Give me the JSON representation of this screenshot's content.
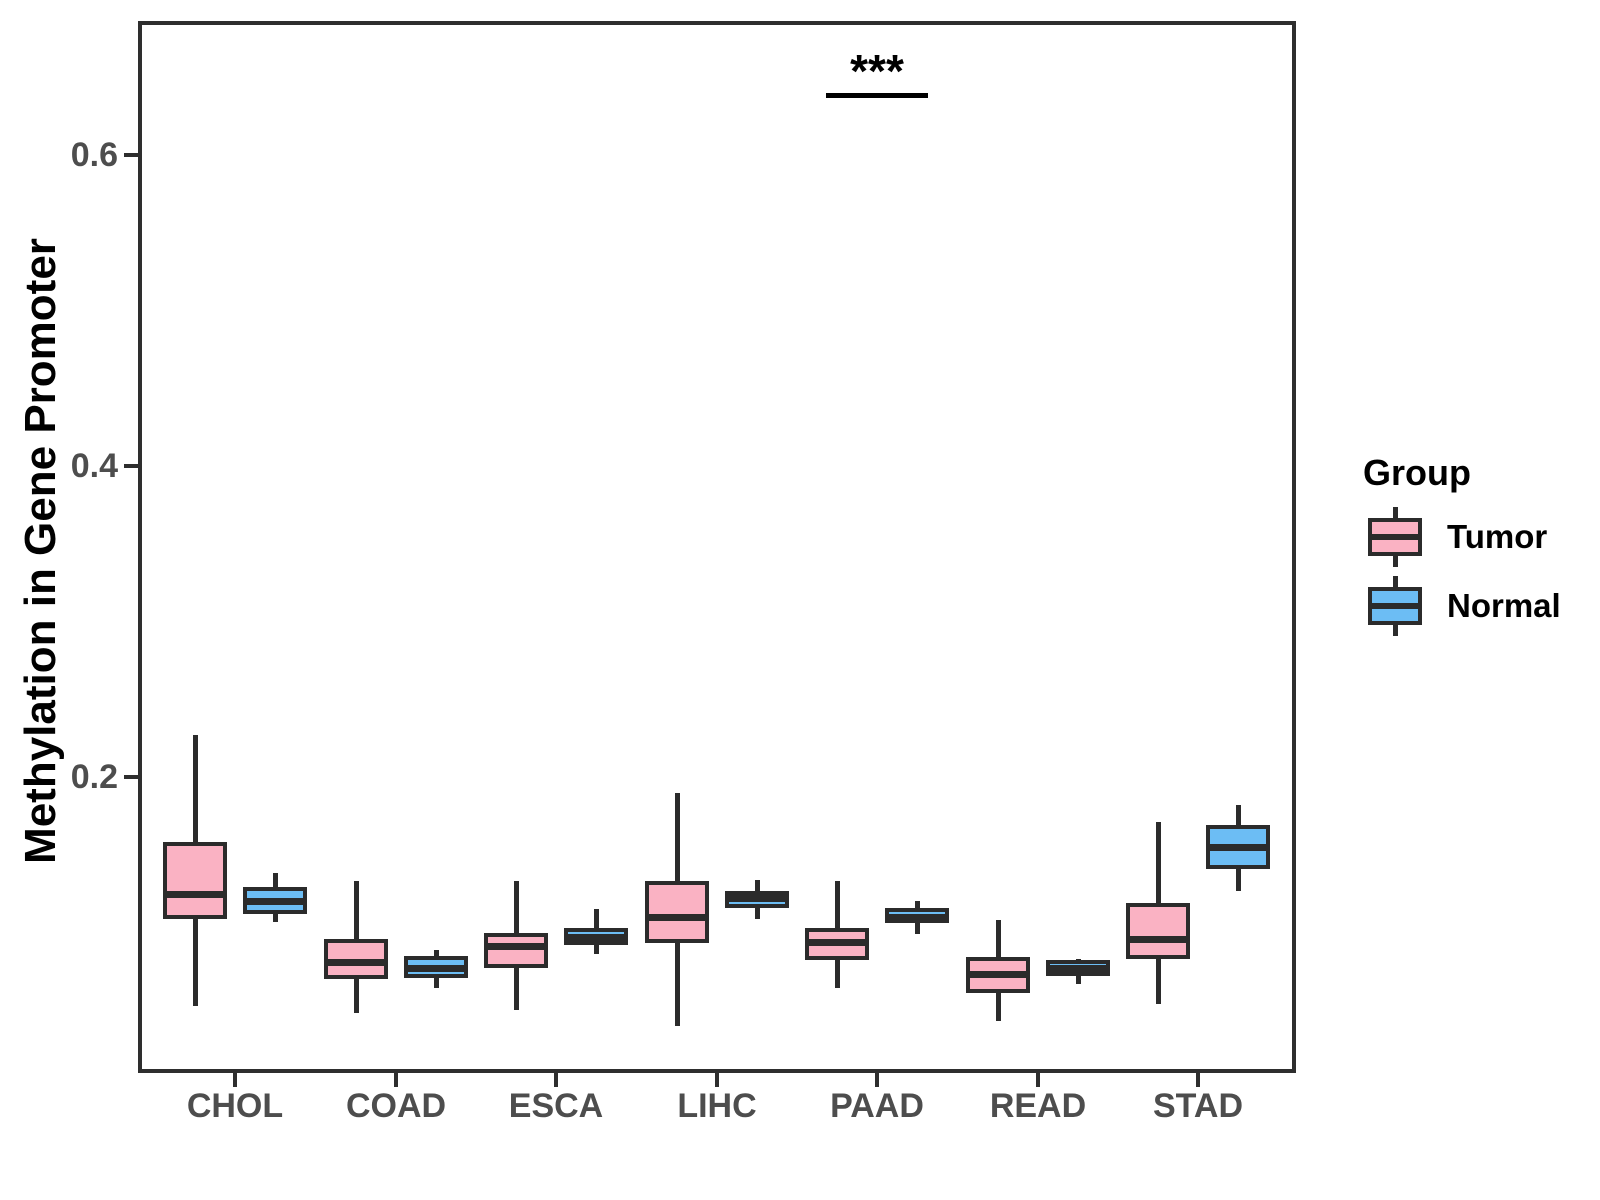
{
  "chart_data": {
    "type": "boxplot",
    "title": "",
    "xlabel": "",
    "ylabel": "Methylation in Gene Promoter",
    "categories": [
      "CHOL",
      "COAD",
      "ESCA",
      "LIHC",
      "PAAD",
      "READ",
      "STAD"
    ],
    "y_ticks": [
      "0.2",
      "0.4",
      "0.6"
    ],
    "y_tick_values": [
      0.2,
      0.4,
      0.6
    ],
    "ylim": [
      0.01,
      0.69
    ],
    "grid": "off",
    "legend_position": "right",
    "legend": {
      "title": "Group",
      "entries": [
        {
          "label": "Tumor",
          "color": "#FAB2C3"
        },
        {
          "label": "Normal",
          "color": "#6CBDF4"
        }
      ]
    },
    "series": [
      {
        "name": "Tumor",
        "color": "#FAB2C3",
        "boxes": [
          {
            "category": "CHOL",
            "whisker_low": 0.053,
            "q1": 0.109,
            "median": 0.125,
            "q3": 0.158,
            "whisker_high": 0.227
          },
          {
            "category": "COAD",
            "whisker_low": 0.048,
            "q1": 0.07,
            "median": 0.081,
            "q3": 0.096,
            "whisker_high": 0.133
          },
          {
            "category": "ESCA",
            "whisker_low": 0.05,
            "q1": 0.077,
            "median": 0.091,
            "q3": 0.1,
            "whisker_high": 0.133
          },
          {
            "category": "LIHC",
            "whisker_low": 0.04,
            "q1": 0.093,
            "median": 0.11,
            "q3": 0.133,
            "whisker_high": 0.19
          },
          {
            "category": "PAAD",
            "whisker_low": 0.064,
            "q1": 0.082,
            "median": 0.094,
            "q3": 0.103,
            "whisker_high": 0.133
          },
          {
            "category": "READ",
            "whisker_low": 0.043,
            "q1": 0.061,
            "median": 0.073,
            "q3": 0.084,
            "whisker_high": 0.108
          },
          {
            "category": "STAD",
            "whisker_low": 0.054,
            "q1": 0.083,
            "median": 0.096,
            "q3": 0.119,
            "whisker_high": 0.171
          }
        ]
      },
      {
        "name": "Normal",
        "color": "#6CBDF4",
        "boxes": [
          {
            "category": "CHOL",
            "whisker_low": 0.107,
            "q1": 0.112,
            "median": 0.12,
            "q3": 0.129,
            "whisker_high": 0.138
          },
          {
            "category": "COAD",
            "whisker_low": 0.064,
            "q1": 0.071,
            "median": 0.077,
            "q3": 0.085,
            "whisker_high": 0.089
          },
          {
            "category": "ESCA",
            "whisker_low": 0.086,
            "q1": 0.092,
            "median": 0.097,
            "q3": 0.103,
            "whisker_high": 0.115
          },
          {
            "category": "LIHC",
            "whisker_low": 0.109,
            "q1": 0.116,
            "median": 0.122,
            "q3": 0.127,
            "whisker_high": 0.134
          },
          {
            "category": "PAAD",
            "whisker_low": 0.099,
            "q1": 0.106,
            "median": 0.11,
            "q3": 0.116,
            "whisker_high": 0.12
          },
          {
            "category": "READ",
            "whisker_low": 0.067,
            "q1": 0.072,
            "median": 0.077,
            "q3": 0.082,
            "whisker_high": 0.083
          },
          {
            "category": "STAD",
            "whisker_low": 0.127,
            "q1": 0.141,
            "median": 0.155,
            "q3": 0.169,
            "whisker_high": 0.182
          }
        ]
      }
    ],
    "annotation": {
      "text": "***",
      "category": "PAAD",
      "line_y": 0.64,
      "text_y": 0.655
    }
  },
  "colors": {
    "box_border": "#2B2B2B",
    "axis_line": "#2E2E2E",
    "axis_text": "#4D4D4D",
    "annotation": "#000000",
    "background": "#FFFFFF"
  }
}
